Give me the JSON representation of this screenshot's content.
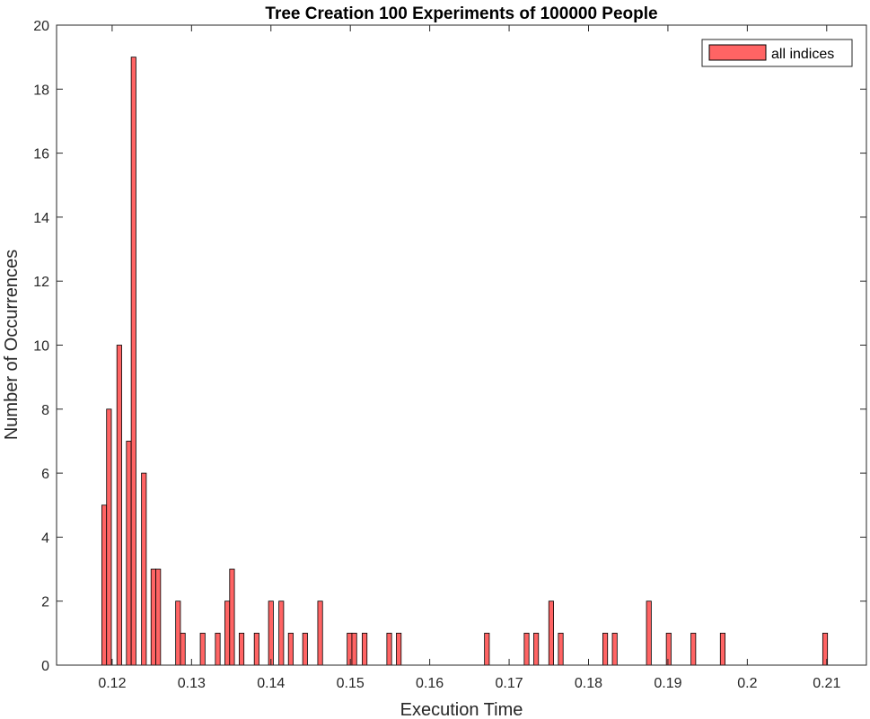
{
  "chart_data": {
    "type": "bar",
    "title": "Tree Creation 100 Experiments of 100000 People",
    "xlabel": "Execution Time",
    "ylabel": "Number of Occurrences",
    "xlim": [
      0.113,
      0.215
    ],
    "ylim": [
      0,
      20
    ],
    "x_ticks": [
      "0.12",
      "0.13",
      "0.14",
      "0.15",
      "0.16",
      "0.17",
      "0.18",
      "0.19",
      "0.2",
      "0.21"
    ],
    "y_ticks": [
      "0",
      "2",
      "4",
      "6",
      "8",
      "10",
      "12",
      "14",
      "16",
      "18",
      "20"
    ],
    "bin_width": 0.0006,
    "grid": false,
    "legend_position": "top-right",
    "series": [
      {
        "name": "all indices",
        "color": "#FF6464",
        "edge_color": "#000000",
        "x": [
          0.119,
          0.1196,
          0.1209,
          0.1221,
          0.1227,
          0.124,
          0.1252,
          0.1258,
          0.1283,
          0.1289,
          0.1314,
          0.1333,
          0.1345,
          0.1351,
          0.1363,
          0.1382,
          0.14,
          0.1413,
          0.1425,
          0.1443,
          0.1462,
          0.1499,
          0.1505,
          0.1518,
          0.1549,
          0.1561,
          0.1672,
          0.1722,
          0.1734,
          0.1753,
          0.1765,
          0.1821,
          0.1833,
          0.1876,
          0.1901,
          0.1932,
          0.1969,
          0.2098
        ],
        "values": [
          5,
          8,
          10,
          7,
          19,
          6,
          3,
          3,
          2,
          1,
          1,
          1,
          2,
          3,
          1,
          1,
          2,
          2,
          1,
          1,
          2,
          1,
          1,
          1,
          1,
          1,
          1,
          1,
          1,
          2,
          1,
          1,
          1,
          2,
          1,
          1,
          1,
          1
        ]
      }
    ]
  }
}
